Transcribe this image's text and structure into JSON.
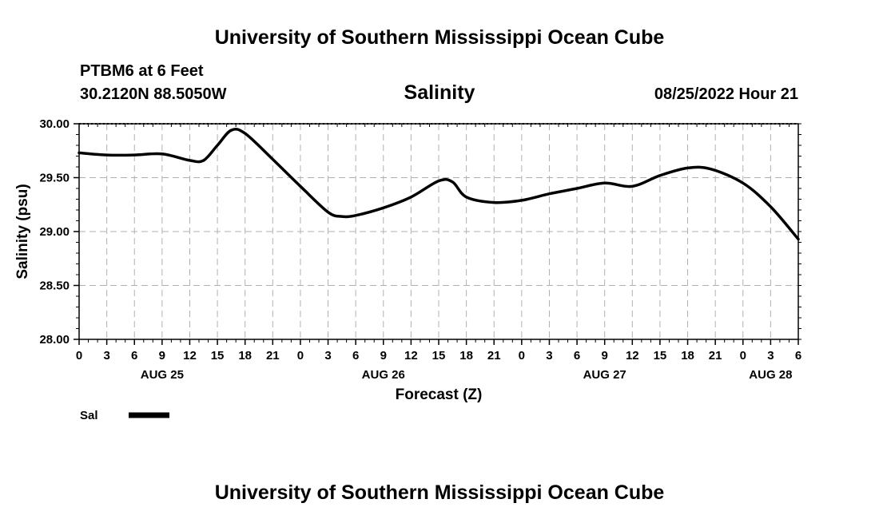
{
  "header": {
    "title": "University of Southern Mississippi Ocean Cube",
    "station": "PTBM6 at 6 Feet",
    "coords": "30.2120N  88.5050W",
    "datetime": "08/25/2022 Hour 21"
  },
  "footer": {
    "title": "University of Southern Mississippi Ocean Cube"
  },
  "legend": {
    "label": "Sal"
  },
  "chart_data": {
    "type": "line",
    "title": "Salinity",
    "xlabel": "Forecast (Z)",
    "ylabel": "Salinity (psu)",
    "xlim": [
      0,
      78
    ],
    "ylim": [
      28.0,
      30.0
    ],
    "yticks": [
      "28.00",
      "28.50",
      "29.00",
      "29.50",
      "30.00"
    ],
    "xtick_labels": [
      "0",
      "3",
      "6",
      "9",
      "12",
      "15",
      "18",
      "21",
      "0",
      "3",
      "6",
      "9",
      "12",
      "15",
      "18",
      "21",
      "0",
      "3",
      "6",
      "9",
      "12",
      "15",
      "18",
      "21",
      "0",
      "3",
      "6"
    ],
    "date_labels": [
      {
        "label": "AUG 25",
        "hour": 9
      },
      {
        "label": "AUG 26",
        "hour": 33
      },
      {
        "label": "AUG 27",
        "hour": 57
      },
      {
        "label": "AUG 28",
        "hour": 75
      }
    ],
    "grid": true,
    "series": [
      {
        "name": "Sal",
        "color": "#000000",
        "x": [
          0,
          3,
          6,
          9,
          12,
          13.5,
          15,
          16.5,
          18,
          21,
          24,
          27,
          28.5,
          30,
          33,
          36,
          39,
          40.5,
          42,
          45,
          48,
          51,
          54,
          57,
          60,
          63,
          66,
          68.5,
          72,
          75,
          78
        ],
        "y": [
          29.73,
          29.71,
          29.71,
          29.72,
          29.66,
          29.66,
          29.8,
          29.94,
          29.91,
          29.67,
          29.42,
          29.18,
          29.14,
          29.15,
          29.22,
          29.32,
          29.47,
          29.46,
          29.32,
          29.27,
          29.29,
          29.35,
          29.4,
          29.45,
          29.42,
          29.52,
          29.59,
          29.58,
          29.45,
          29.23,
          28.93
        ]
      }
    ]
  }
}
